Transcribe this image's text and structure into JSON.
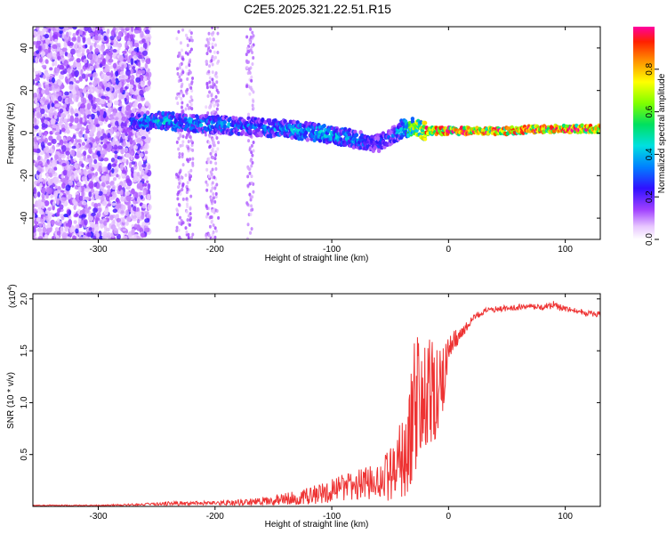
{
  "chart_data": [
    {
      "type": "heatmap",
      "title": "C2E5.2025.321.22.51.R15",
      "xlabel": "Height of straight line (km)",
      "ylabel": "Frequency (Hz)",
      "xlim": [
        -356,
        130
      ],
      "ylim": [
        -50,
        50
      ],
      "xticks": [
        -300,
        -200,
        -100,
        0,
        100
      ],
      "xtick_labels": [
        "-300",
        "-200",
        "-100",
        "0",
        "100"
      ],
      "yticks": [
        -40,
        -20,
        0,
        20,
        40
      ],
      "ytick_labels": [
        "-40",
        "-20",
        "0",
        "20",
        "40"
      ],
      "colorbar": {
        "label": "Normalized spectral amplitude",
        "range": [
          0,
          1
        ],
        "ticks": [
          0.0,
          0.2,
          0.4,
          0.6,
          0.8
        ],
        "tick_labels": [
          "0.0",
          "0.2",
          "0.4",
          "0.6",
          "0.8"
        ]
      },
      "ridge": {
        "x": [
          -270,
          -250,
          -230,
          -200,
          -170,
          -140,
          -110,
          -80,
          -60,
          -50,
          -40,
          -30,
          -20,
          0,
          50,
          80,
          100,
          130
        ],
        "y": [
          5,
          6,
          5,
          4,
          3,
          2,
          0,
          -3,
          -5,
          -2,
          2,
          3,
          1,
          1,
          1,
          2,
          2,
          2
        ],
        "amplitude": [
          0.35,
          0.45,
          0.4,
          0.4,
          0.35,
          0.4,
          0.45,
          0.4,
          0.3,
          0.3,
          0.45,
          0.7,
          0.9,
          0.95,
          0.9,
          0.9,
          0.95,
          0.9
        ]
      }
    },
    {
      "type": "line",
      "xlabel": "Height of straight line (km)",
      "ylabel": "SNR (10 * v/v)",
      "y_scale_note": "(x10",
      "y_scale_exp": "4",
      "xlim": [
        -356,
        130
      ],
      "ylim": [
        0,
        2.05
      ],
      "xticks": [
        -300,
        -200,
        -100,
        0,
        100
      ],
      "xtick_labels": [
        "-300",
        "-200",
        "-100",
        "0",
        "100"
      ],
      "yticks": [
        0.5,
        1.0,
        1.5,
        2.0
      ],
      "ytick_labels": [
        "0.5",
        "1.0",
        "1.5",
        "2.0"
      ],
      "color": "#ee3333",
      "series": [
        {
          "name": "SNR",
          "x": [
            -356,
            -300,
            -260,
            -240,
            -220,
            -200,
            -180,
            -160,
            -140,
            -120,
            -100,
            -90,
            -80,
            -70,
            -60,
            -50,
            -40,
            -35,
            -30,
            -25,
            -20,
            -15,
            -10,
            -5,
            0,
            10,
            20,
            30,
            40,
            60,
            80,
            90,
            100,
            110,
            120,
            130
          ],
          "y": [
            0.01,
            0.01,
            0.02,
            0.03,
            0.03,
            0.03,
            0.04,
            0.05,
            0.07,
            0.1,
            0.15,
            0.18,
            0.2,
            0.22,
            0.25,
            0.3,
            0.45,
            0.55,
            0.9,
            1.1,
            1.0,
            1.05,
            1.05,
            1.2,
            1.55,
            1.65,
            1.8,
            1.88,
            1.9,
            1.92,
            1.92,
            1.94,
            1.9,
            1.88,
            1.86,
            1.85
          ],
          "noise": [
            0.005,
            0.005,
            0.01,
            0.02,
            0.02,
            0.02,
            0.03,
            0.04,
            0.06,
            0.08,
            0.12,
            0.13,
            0.15,
            0.16,
            0.18,
            0.25,
            0.4,
            0.55,
            0.7,
            0.7,
            0.65,
            0.55,
            0.5,
            0.35,
            0.15,
            0.06,
            0.04,
            0.03,
            0.03,
            0.03,
            0.03,
            0.04,
            0.03,
            0.03,
            0.03,
            0.03
          ]
        }
      ]
    }
  ]
}
